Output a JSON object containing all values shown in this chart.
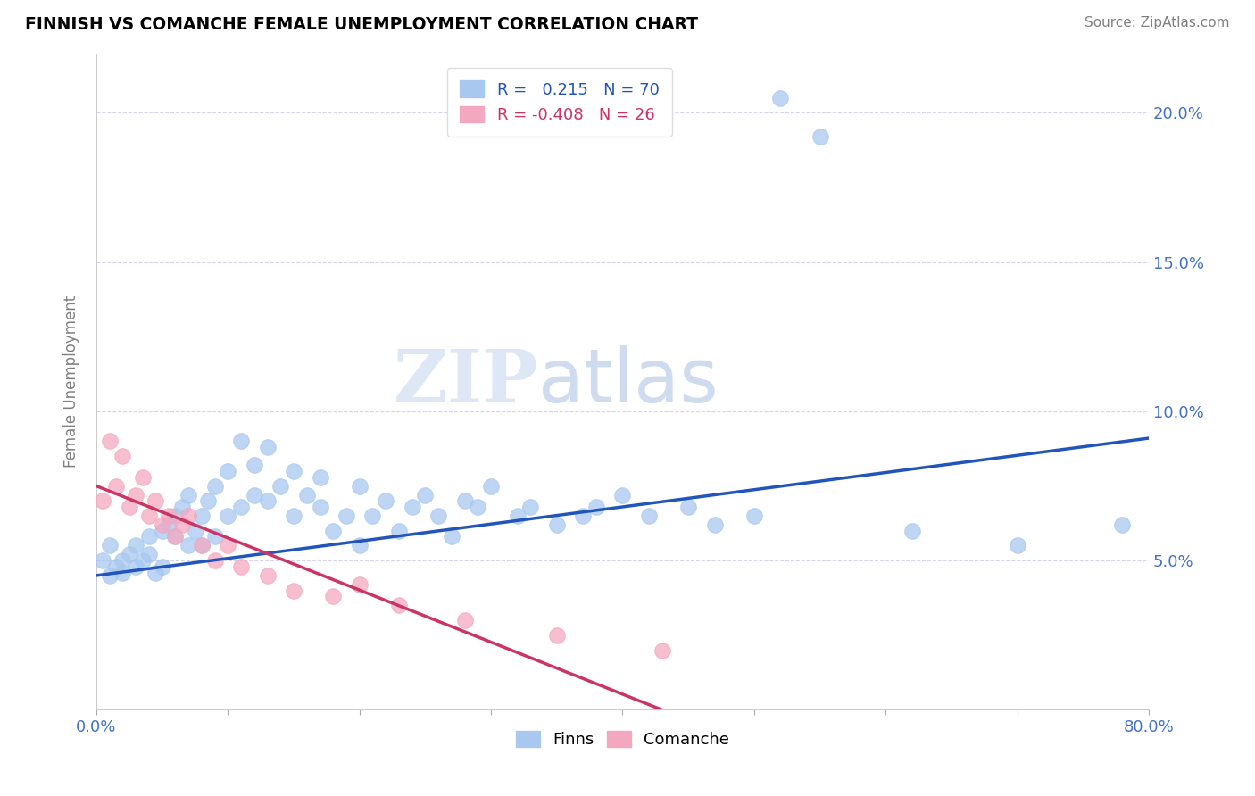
{
  "title": "FINNISH VS COMANCHE FEMALE UNEMPLOYMENT CORRELATION CHART",
  "source": "Source: ZipAtlas.com",
  "xmin": 0.0,
  "xmax": 0.8,
  "ymin": 0.0,
  "ymax": 0.22,
  "finns_R": 0.215,
  "finns_N": 70,
  "comanche_R": -0.408,
  "comanche_N": 26,
  "finns_color": "#A8C8F0",
  "comanche_color": "#F4A8C0",
  "finns_line_color": "#2255BB",
  "comanche_line_color": "#CC3366",
  "finns_x": [
    0.005,
    0.01,
    0.01,
    0.015,
    0.02,
    0.02,
    0.025,
    0.03,
    0.03,
    0.035,
    0.04,
    0.04,
    0.045,
    0.05,
    0.05,
    0.055,
    0.06,
    0.06,
    0.065,
    0.07,
    0.07,
    0.075,
    0.08,
    0.08,
    0.085,
    0.09,
    0.09,
    0.1,
    0.1,
    0.11,
    0.11,
    0.12,
    0.12,
    0.13,
    0.13,
    0.14,
    0.15,
    0.15,
    0.16,
    0.17,
    0.17,
    0.18,
    0.19,
    0.2,
    0.2,
    0.21,
    0.22,
    0.23,
    0.24,
    0.25,
    0.26,
    0.27,
    0.28,
    0.29,
    0.3,
    0.32,
    0.33,
    0.35,
    0.37,
    0.38,
    0.4,
    0.42,
    0.45,
    0.47,
    0.5,
    0.52,
    0.55,
    0.62,
    0.7,
    0.78
  ],
  "finns_y": [
    0.05,
    0.045,
    0.055,
    0.048,
    0.05,
    0.046,
    0.052,
    0.048,
    0.055,
    0.05,
    0.052,
    0.058,
    0.046,
    0.06,
    0.048,
    0.062,
    0.058,
    0.065,
    0.068,
    0.055,
    0.072,
    0.06,
    0.065,
    0.055,
    0.07,
    0.058,
    0.075,
    0.065,
    0.08,
    0.068,
    0.09,
    0.072,
    0.082,
    0.07,
    0.088,
    0.075,
    0.08,
    0.065,
    0.072,
    0.068,
    0.078,
    0.06,
    0.065,
    0.075,
    0.055,
    0.065,
    0.07,
    0.06,
    0.068,
    0.072,
    0.065,
    0.058,
    0.07,
    0.068,
    0.075,
    0.065,
    0.068,
    0.062,
    0.065,
    0.068,
    0.072,
    0.065,
    0.068,
    0.062,
    0.065,
    0.205,
    0.192,
    0.06,
    0.055,
    0.062
  ],
  "comanche_x": [
    0.005,
    0.01,
    0.015,
    0.02,
    0.025,
    0.03,
    0.035,
    0.04,
    0.045,
    0.05,
    0.055,
    0.06,
    0.065,
    0.07,
    0.08,
    0.09,
    0.1,
    0.11,
    0.13,
    0.15,
    0.18,
    0.2,
    0.23,
    0.28,
    0.35,
    0.43
  ],
  "comanche_y": [
    0.07,
    0.09,
    0.075,
    0.085,
    0.068,
    0.072,
    0.078,
    0.065,
    0.07,
    0.062,
    0.065,
    0.058,
    0.062,
    0.065,
    0.055,
    0.05,
    0.055,
    0.048,
    0.045,
    0.04,
    0.038,
    0.042,
    0.035,
    0.03,
    0.025,
    0.02
  ]
}
